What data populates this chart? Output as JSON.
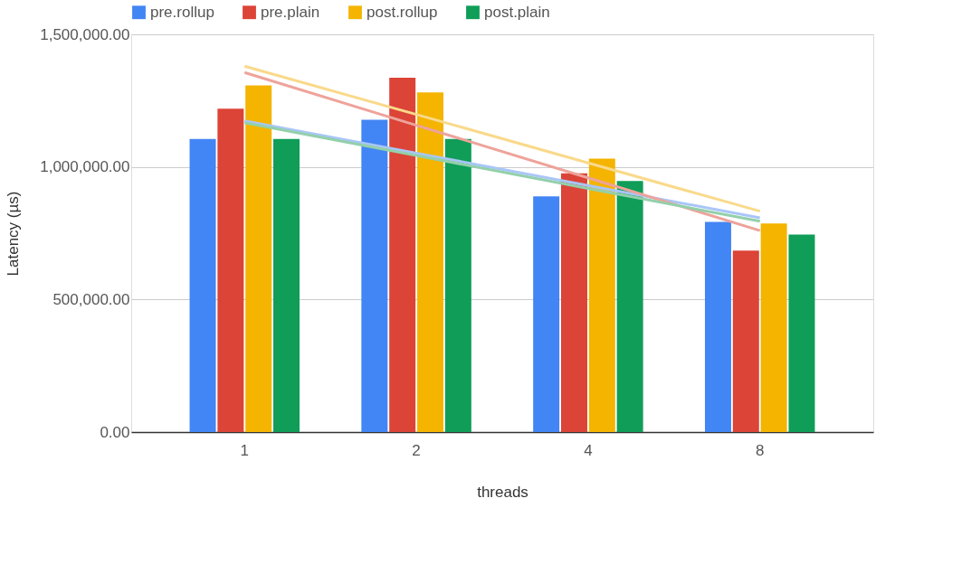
{
  "chart_data": {
    "type": "bar",
    "xlabel": "threads",
    "ylabel": "Latency (µs)",
    "categories": [
      "1",
      "2",
      "4",
      "8"
    ],
    "ylim": [
      0,
      1500000
    ],
    "yticks": [
      {
        "value": 0,
        "label": "0.00"
      },
      {
        "value": 500000,
        "label": "500,000.00"
      },
      {
        "value": 1000000,
        "label": "1,000,000.00"
      },
      {
        "value": 1500000,
        "label": "1,500,000.00"
      }
    ],
    "grid": "y",
    "legend": "top",
    "series": [
      {
        "name": "pre.rollup",
        "color": "#4285f4",
        "values": [
          1105000,
          1178000,
          889000,
          793000
        ]
      },
      {
        "name": "pre.plain",
        "color": "#db4437",
        "values": [
          1220000,
          1336000,
          976000,
          684000
        ]
      },
      {
        "name": "post.rollup",
        "color": "#f4b400",
        "values": [
          1307000,
          1281000,
          1031000,
          787000
        ]
      },
      {
        "name": "post.plain",
        "color": "#0f9d58",
        "values": [
          1105000,
          1105000,
          947000,
          745000
        ]
      },
      {
        "type": "line",
        "color": "#a9c6f8",
        "values": [
          1174000,
          1052000,
          930000,
          808000
        ]
      },
      {
        "type": "line",
        "color": "#eea39b",
        "values": [
          1356000,
          1157000,
          959000,
          760000
        ]
      },
      {
        "type": "line",
        "color": "#f9d98a",
        "values": [
          1380000,
          1198000,
          1015000,
          833000
        ]
      },
      {
        "type": "line",
        "color": "#93d0ab",
        "values": [
          1167000,
          1043000,
          919000,
          795000
        ]
      }
    ]
  }
}
